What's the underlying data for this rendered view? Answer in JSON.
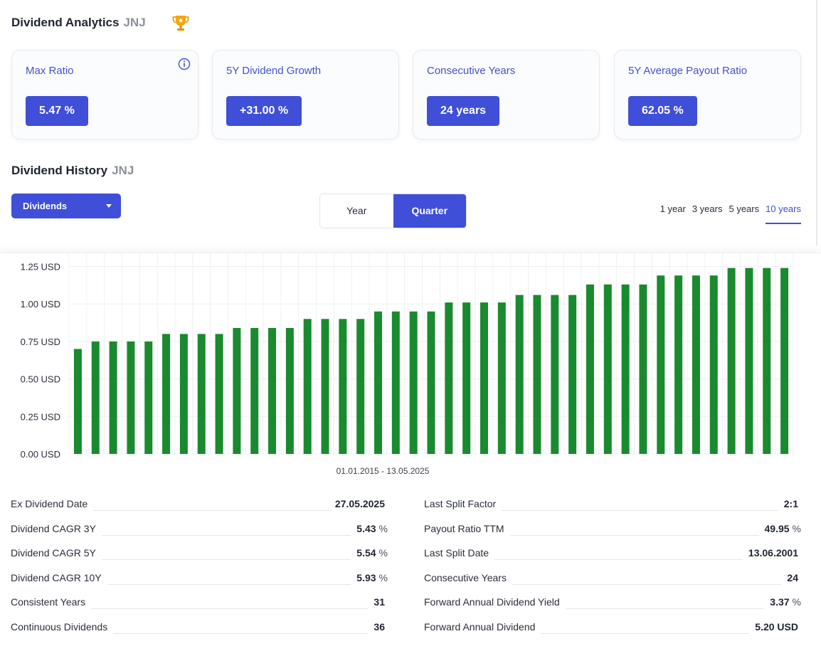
{
  "header": {
    "title": "Dividend Analytics",
    "ticker": "JNJ",
    "trophy_icon": "trophy-icon"
  },
  "cards": [
    {
      "label": "Max Ratio",
      "value": "5.47 %",
      "has_info": true
    },
    {
      "label": "5Y Dividend Growth",
      "value": "+31.00 %"
    },
    {
      "label": "Consecutive Years",
      "value": "24 years"
    },
    {
      "label": "5Y Average Payout Ratio",
      "value": "62.05 %"
    }
  ],
  "history": {
    "title": "Dividend History",
    "ticker": "JNJ",
    "dropdown_label": "Dividends",
    "toggle": {
      "year": "Year",
      "quarter": "Quarter",
      "selected": "Quarter"
    },
    "ranges": [
      "1 year",
      "3 years",
      "5 years",
      "10 years"
    ],
    "selected_range": "10 years",
    "date_range": "01.01.2015 - 13.05.2025"
  },
  "colors": {
    "accent": "#3f4fd8",
    "bar": "#1a8a2e",
    "label": "#4352c9"
  },
  "chart_data": {
    "type": "bar",
    "y_tick_labels": [
      "1.25 USD",
      "1.00 USD",
      "0.75 USD",
      "0.50 USD",
      "0.25 USD",
      "0.00 USD"
    ],
    "y_ticks": [
      1.25,
      1.0,
      0.75,
      0.5,
      0.25,
      0.0
    ],
    "ylim": [
      0,
      1.3
    ],
    "x_caption": "01.01.2015 - 13.05.2025",
    "grid": true,
    "values": [
      0.7,
      0.75,
      0.75,
      0.75,
      0.75,
      0.8,
      0.8,
      0.8,
      0.8,
      0.84,
      0.84,
      0.84,
      0.84,
      0.9,
      0.9,
      0.9,
      0.9,
      0.95,
      0.95,
      0.95,
      0.95,
      1.01,
      1.01,
      1.01,
      1.01,
      1.06,
      1.06,
      1.06,
      1.06,
      1.13,
      1.13,
      1.13,
      1.13,
      1.19,
      1.19,
      1.19,
      1.19,
      1.24,
      1.24,
      1.24,
      1.24
    ]
  },
  "stats_left": [
    {
      "label": "Ex Dividend Date",
      "value": "27.05.2025",
      "unit": ""
    },
    {
      "label": "Dividend CAGR 3Y",
      "value": "5.43",
      "unit": "%"
    },
    {
      "label": "Dividend CAGR 5Y",
      "value": "5.54",
      "unit": "%"
    },
    {
      "label": "Dividend CAGR 10Y",
      "value": "5.93",
      "unit": "%"
    },
    {
      "label": "Consistent Years",
      "value": "31",
      "unit": ""
    },
    {
      "label": "Continuous Dividends",
      "value": "36",
      "unit": ""
    }
  ],
  "stats_right": [
    {
      "label": "Last Split Factor",
      "value": "2:1",
      "unit": ""
    },
    {
      "label": "Payout Ratio TTM",
      "value": "49.95",
      "unit": "%"
    },
    {
      "label": "Last Split Date",
      "value": "13.06.2001",
      "unit": ""
    },
    {
      "label": "Consecutive Years",
      "value": "24",
      "unit": ""
    },
    {
      "label": "Forward Annual Dividend Yield",
      "value": "3.37",
      "unit": "%"
    },
    {
      "label": "Forward Annual Dividend",
      "value": "5.20 USD",
      "unit": ""
    }
  ]
}
